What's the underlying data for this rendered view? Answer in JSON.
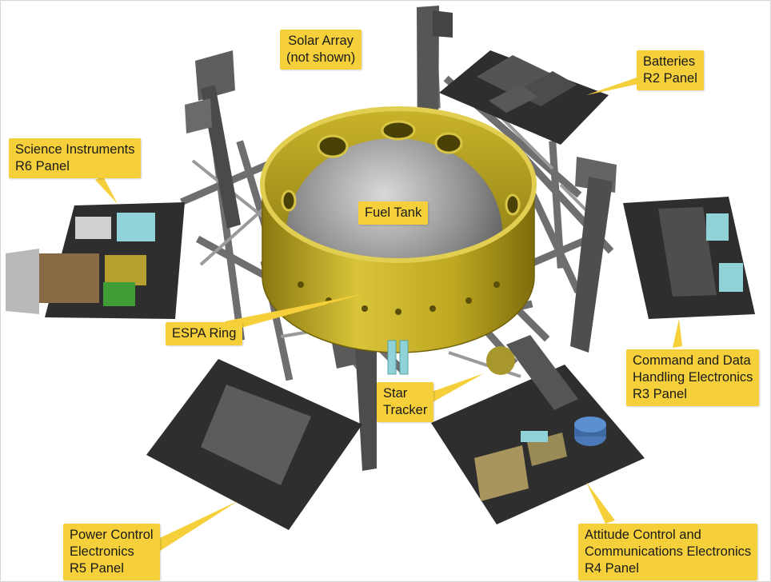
{
  "labels": {
    "solar_array": [
      "Solar Array",
      "(not shown)"
    ],
    "batteries": [
      "Batteries",
      "R2 Panel"
    ],
    "science": [
      "Science Instruments",
      "R6 Panel"
    ],
    "fuel_tank": [
      "Fuel Tank"
    ],
    "espa_ring": [
      "ESPA Ring"
    ],
    "star_tracker": [
      "Star",
      "Tracker"
    ],
    "cdh": [
      "Command and Data",
      "Handling Electronics",
      "R3 Panel"
    ],
    "power": [
      "Power Control",
      "Electronics",
      "R5 Panel"
    ],
    "attitude": [
      "Attitude Control and",
      "Communications Electronics",
      "R4 Panel"
    ]
  },
  "colors": {
    "callout": "#f5d03a",
    "ring": "#b8a21c",
    "panel": "#2c2c2c",
    "strut": "#6b6b6b",
    "tank": "#8e8e8e",
    "cyan_box": "#8fd3d8",
    "tan_box": "#b49c62"
  }
}
